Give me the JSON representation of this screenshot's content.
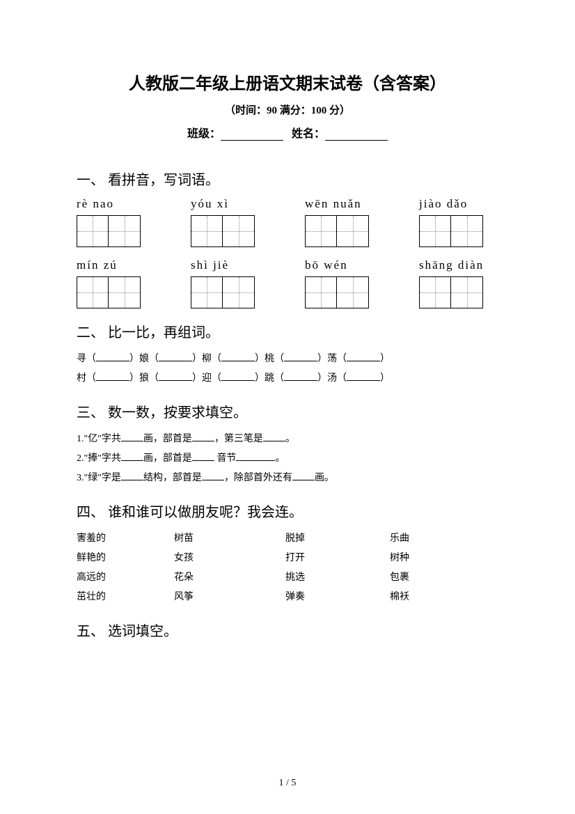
{
  "header": {
    "title": "人教版二年级上册语文期末试卷（含答案）",
    "subtitle": "（时间：90   满分：100 分）",
    "class_label": "班级：",
    "name_label": "姓名："
  },
  "section1": {
    "title": "一、  看拼音，写词语。",
    "pinyin_row1": [
      {
        "p": "rè     nao"
      },
      {
        "p": "yóu    xì"
      },
      {
        "p": "wēn nuǎn"
      },
      {
        "p": "jiào dǎo"
      }
    ],
    "pinyin_row2": [
      {
        "p": "mín   zú"
      },
      {
        "p": "shì   jiè"
      },
      {
        "p": "bō  wén"
      },
      {
        "p": "shāng diàn"
      }
    ]
  },
  "section2": {
    "title": "二、  比一比，再组词。",
    "row1": [
      "寻",
      "娘",
      "柳",
      "桃",
      "荡"
    ],
    "row2": [
      "村",
      "狼",
      "迎",
      "跳",
      "汤"
    ]
  },
  "section3": {
    "title": "三、  数一数，按要求填空。",
    "q1_a": "1.\"亿\"字共",
    "q1_b": "画，部首是",
    "q1_c": "，第三笔是",
    "q1_d": "。",
    "q2_a": "2.\"捧\"字共",
    "q2_b": "画，部首是",
    "q2_c": "     音节",
    "q2_d": "。",
    "q3_a": "3.\"绿\"字是",
    "q3_b": "结构，部首是",
    "q3_c": "，除部首外还有",
    "q3_d": "画。"
  },
  "section4": {
    "title": "四、  谁和谁可以做朋友呢？我会连。",
    "rows": [
      {
        "c1": "害羞的",
        "c2": "树苗",
        "c3": "脱掉",
        "c4": "乐曲"
      },
      {
        "c1": "鲜艳的",
        "c2": "女孩",
        "c3": "打开",
        "c4": "树种"
      },
      {
        "c1": "高远的",
        "c2": "花朵",
        "c3": "挑选",
        "c4": "包裹"
      },
      {
        "c1": "茁壮的",
        "c2": "风筝",
        "c3": "弹奏",
        "c4": "棉袄"
      }
    ]
  },
  "section5": {
    "title": "五、  选词填空。"
  },
  "footer": {
    "page": "1 / 5"
  }
}
